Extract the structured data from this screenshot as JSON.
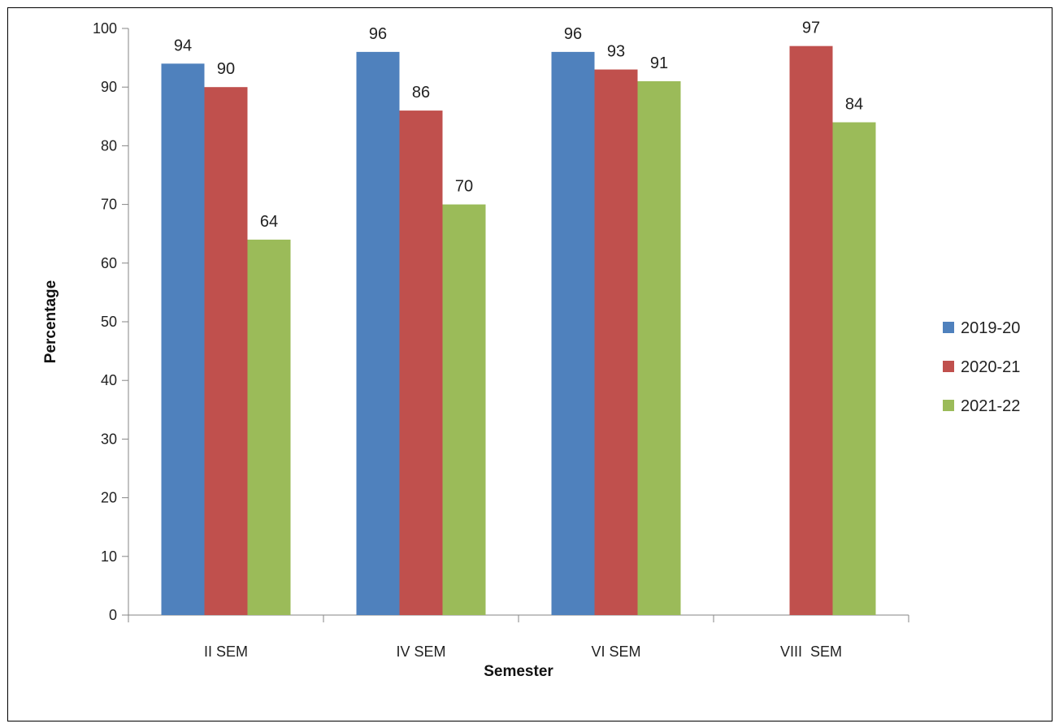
{
  "chart_data": {
    "type": "bar",
    "title": "",
    "xlabel": "Semester",
    "ylabel": "Percentage",
    "ylim": [
      0,
      100
    ],
    "yticks": [
      0,
      10,
      20,
      30,
      40,
      50,
      60,
      70,
      80,
      90,
      100
    ],
    "categories": [
      "II SEM",
      "IV SEM",
      "VI SEM",
      "VIII  SEM"
    ],
    "series": [
      {
        "name": "2019-20",
        "color": "#4F81BD",
        "values": [
          94,
          96,
          96,
          null
        ]
      },
      {
        "name": "2020-21",
        "color": "#C0504D",
        "values": [
          90,
          86,
          93,
          97
        ]
      },
      {
        "name": "2021-22",
        "color": "#9BBB59",
        "values": [
          64,
          70,
          91,
          84
        ]
      }
    ],
    "grid": false,
    "legend_position": "right",
    "data_labels": true
  }
}
